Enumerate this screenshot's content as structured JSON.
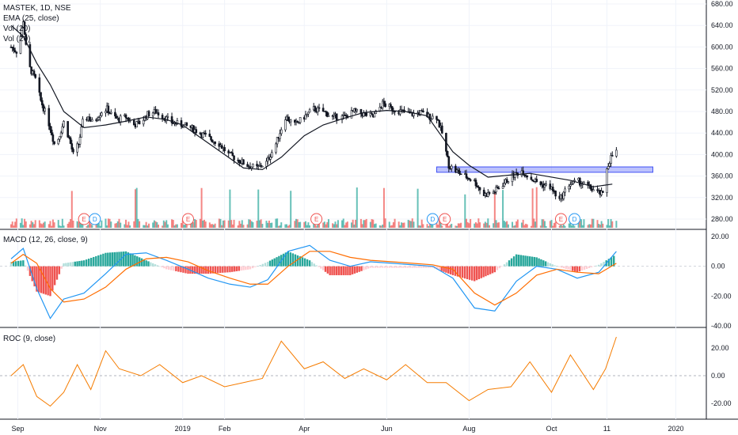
{
  "header": {
    "symbol": "MASTEK, 1D, NSE",
    "ema": "EMA (25, close)",
    "vol1": "Vol (20)",
    "vol2": "Vol (20)"
  },
  "macd_label": "MACD (12, 26, close, 9)",
  "roc_label": "ROC (9, close)",
  "x_labels": [
    "Sep",
    "Nov",
    "2019",
    "Feb",
    "Apr",
    "Jun",
    "Aug",
    "Oct",
    "11",
    "2020"
  ],
  "price_ticks": [
    "680.00",
    "640.00",
    "600.00",
    "560.00",
    "520.00",
    "480.00",
    "440.00",
    "400.00",
    "360.00",
    "320.00",
    "280.00"
  ],
  "macd_ticks": [
    "20.00",
    "0.00",
    "-20.00",
    "-40.00"
  ],
  "roc_ticks": [
    "20.00",
    "0.00",
    "-20.00"
  ],
  "events": [
    "E",
    "D",
    "E",
    "E",
    "D",
    "E",
    "E",
    "D"
  ],
  "colors": {
    "candle": "#131722",
    "ema": "#131722",
    "macd_line": "#2196f3",
    "signal_line": "#ff6d00",
    "hist_pos_strong": "#26a69a",
    "hist_pos_weak": "#b2dfdb",
    "hist_neg_strong": "#ef5350",
    "hist_neg_weak": "#ffcdd2",
    "roc": "#f57c00",
    "zone": "#3f51f5",
    "vol_up": "#26a69a",
    "vol_down": "#ef5350"
  },
  "chart_data": [
    {
      "type": "line",
      "title": "MASTEK, 1D, NSE",
      "subtype": "candlestick",
      "ylim": [
        270,
        690
      ],
      "x_ticks": [
        "Sep",
        "Nov",
        "2019",
        "Feb",
        "Apr",
        "Jun",
        "Aug",
        "Oct",
        "11",
        "2020"
      ],
      "series": [
        {
          "name": "EMA (25, close)",
          "x": [
            "2018-08-27",
            "2018-09-05",
            "2018-09-15",
            "2018-09-25",
            "2018-10-05",
            "2018-10-20",
            "2018-11-05",
            "2018-11-20",
            "2018-12-05",
            "2018-12-20",
            "2019-01-01",
            "2019-01-15",
            "2019-02-01",
            "2019-02-15",
            "2019-03-01",
            "2019-03-15",
            "2019-04-01",
            "2019-04-15",
            "2019-05-01",
            "2019-05-15",
            "2019-06-01",
            "2019-06-15",
            "2019-07-01",
            "2019-07-10",
            "2019-07-20",
            "2019-08-01",
            "2019-08-15",
            "2019-09-01",
            "2019-09-15",
            "2019-10-01",
            "2019-10-15",
            "2019-11-01",
            "2019-11-15"
          ],
          "values": [
            640,
            620,
            570,
            530,
            480,
            450,
            455,
            462,
            470,
            465,
            455,
            430,
            400,
            375,
            372,
            395,
            435,
            455,
            468,
            478,
            482,
            480,
            472,
            440,
            405,
            380,
            358,
            362,
            365,
            358,
            352,
            340,
            345
          ]
        },
        {
          "name": "Support zone",
          "x": [
            "2019-07-08",
            "2019-12-15"
          ],
          "values": [
            372,
            372
          ]
        }
      ],
      "candles_close": [
        [
          "2018-08-27",
          600
        ],
        [
          "2018-09-01",
          590
        ],
        [
          "2018-09-03",
          620
        ],
        [
          "2018-09-05",
          650
        ],
        [
          "2018-09-07",
          600
        ],
        [
          "2018-09-10",
          560
        ],
        [
          "2018-09-14",
          540
        ],
        [
          "2018-09-18",
          500
        ],
        [
          "2018-09-21",
          480
        ],
        [
          "2018-09-25",
          450
        ],
        [
          "2018-09-28",
          420
        ],
        [
          "2018-10-01",
          430
        ],
        [
          "2018-10-05",
          460
        ],
        [
          "2018-10-09",
          430
        ],
        [
          "2018-10-12",
          400
        ],
        [
          "2018-10-16",
          420
        ],
        [
          "2018-10-19",
          460
        ],
        [
          "2018-10-23",
          470
        ],
        [
          "2018-10-26",
          460
        ],
        [
          "2018-10-30",
          470
        ],
        [
          "2018-11-02",
          480
        ],
        [
          "2018-11-06",
          485
        ],
        [
          "2018-11-09",
          475
        ],
        [
          "2018-11-14",
          465
        ],
        [
          "2018-11-20",
          470
        ],
        [
          "2018-11-26",
          455
        ],
        [
          "2018-12-01",
          460
        ],
        [
          "2018-12-06",
          475
        ],
        [
          "2018-12-12",
          480
        ],
        [
          "2018-12-18",
          470
        ],
        [
          "2018-12-24",
          460
        ],
        [
          "2019-01-01",
          455
        ],
        [
          "2019-01-07",
          450
        ],
        [
          "2019-01-14",
          440
        ],
        [
          "2019-01-21",
          430
        ],
        [
          "2019-01-28",
          420
        ],
        [
          "2019-02-04",
          400
        ],
        [
          "2019-02-11",
          390
        ],
        [
          "2019-02-18",
          380
        ],
        [
          "2019-02-25",
          375
        ],
        [
          "2019-03-04",
          385
        ],
        [
          "2019-03-11",
          420
        ],
        [
          "2019-03-18",
          470
        ],
        [
          "2019-03-25",
          455
        ],
        [
          "2019-04-01",
          470
        ],
        [
          "2019-04-08",
          485
        ],
        [
          "2019-04-15",
          480
        ],
        [
          "2019-04-22",
          470
        ],
        [
          "2019-05-01",
          470
        ],
        [
          "2019-05-08",
          480
        ],
        [
          "2019-05-15",
          475
        ],
        [
          "2019-05-22",
          470
        ],
        [
          "2019-05-29",
          495
        ],
        [
          "2019-06-05",
          485
        ],
        [
          "2019-06-12",
          480
        ],
        [
          "2019-06-19",
          475
        ],
        [
          "2019-06-26",
          478
        ],
        [
          "2019-07-03",
          470
        ],
        [
          "2019-07-08",
          470
        ],
        [
          "2019-07-12",
          440
        ],
        [
          "2019-07-17",
          380
        ],
        [
          "2019-07-22",
          370
        ],
        [
          "2019-07-29",
          360
        ],
        [
          "2019-08-05",
          350
        ],
        [
          "2019-08-12",
          325
        ],
        [
          "2019-08-19",
          330
        ],
        [
          "2019-08-26",
          345
        ],
        [
          "2019-09-02",
          360
        ],
        [
          "2019-09-09",
          370
        ],
        [
          "2019-09-16",
          355
        ],
        [
          "2019-09-23",
          345
        ],
        [
          "2019-09-30",
          340
        ],
        [
          "2019-10-07",
          315
        ],
        [
          "2019-10-14",
          345
        ],
        [
          "2019-10-21",
          350
        ],
        [
          "2019-10-28",
          340
        ],
        [
          "2019-11-04",
          330
        ],
        [
          "2019-11-08",
          325
        ],
        [
          "2019-11-11",
          375
        ],
        [
          "2019-11-14",
          395
        ],
        [
          "2019-11-18",
          405
        ]
      ]
    },
    {
      "type": "bar",
      "title": "MACD (12, 26, close, 9)",
      "ylim": [
        -40,
        22
      ],
      "series": [
        {
          "name": "MACD",
          "x": [
            "2018-08-27",
            "2018-09-05",
            "2018-09-15",
            "2018-09-25",
            "2018-10-05",
            "2018-10-20",
            "2018-11-05",
            "2018-11-20",
            "2018-12-05",
            "2018-12-20",
            "2019-01-05",
            "2019-01-20",
            "2019-02-05",
            "2019-02-20",
            "2019-03-05",
            "2019-03-20",
            "2019-04-05",
            "2019-04-20",
            "2019-05-05",
            "2019-05-20",
            "2019-06-05",
            "2019-06-20",
            "2019-07-05",
            "2019-07-20",
            "2019-08-05",
            "2019-08-20",
            "2019-09-05",
            "2019-09-20",
            "2019-10-05",
            "2019-10-20",
            "2019-11-05",
            "2019-11-18"
          ],
          "values": [
            5,
            12,
            -15,
            -35,
            -22,
            -18,
            -5,
            8,
            9,
            4,
            -2,
            -8,
            -12,
            -14,
            -9,
            10,
            14,
            4,
            0,
            3,
            2,
            1,
            0,
            -8,
            -28,
            -30,
            -10,
            0,
            -2,
            -8,
            -4,
            10
          ]
        },
        {
          "name": "Signal",
          "x": [
            "2018-08-27",
            "2018-09-05",
            "2018-09-15",
            "2018-09-25",
            "2018-10-05",
            "2018-10-20",
            "2018-11-05",
            "2018-11-20",
            "2018-12-05",
            "2018-12-20",
            "2019-01-05",
            "2019-01-20",
            "2019-02-05",
            "2019-02-20",
            "2019-03-05",
            "2019-03-20",
            "2019-04-05",
            "2019-04-20",
            "2019-05-05",
            "2019-05-20",
            "2019-06-05",
            "2019-06-20",
            "2019-07-05",
            "2019-07-20",
            "2019-08-05",
            "2019-08-20",
            "2019-09-05",
            "2019-09-20",
            "2019-10-05",
            "2019-10-20",
            "2019-11-05",
            "2019-11-18"
          ],
          "values": [
            2,
            8,
            2,
            -15,
            -24,
            -22,
            -14,
            -2,
            5,
            6,
            3,
            -3,
            -8,
            -12,
            -12,
            0,
            10,
            10,
            6,
            4,
            3,
            2,
            1,
            -2,
            -18,
            -26,
            -18,
            -6,
            -2,
            -4,
            -5,
            2
          ]
        }
      ]
    },
    {
      "type": "line",
      "title": "ROC (9, close)",
      "ylim": [
        -25,
        30
      ],
      "series": [
        {
          "name": "ROC",
          "x": [
            "2018-08-27",
            "2018-09-05",
            "2018-09-15",
            "2018-09-25",
            "2018-10-05",
            "2018-10-15",
            "2018-10-25",
            "2018-11-05",
            "2018-11-15",
            "2018-12-01",
            "2018-12-15",
            "2019-01-01",
            "2019-01-15",
            "2019-02-01",
            "2019-02-15",
            "2019-03-01",
            "2019-03-15",
            "2019-04-01",
            "2019-04-15",
            "2019-05-01",
            "2019-05-15",
            "2019-06-01",
            "2019-06-15",
            "2019-07-01",
            "2019-07-15",
            "2019-08-01",
            "2019-08-15",
            "2019-09-01",
            "2019-09-15",
            "2019-10-01",
            "2019-10-15",
            "2019-11-01",
            "2019-11-10",
            "2019-11-18"
          ],
          "values": [
            0,
            8,
            -15,
            -22,
            -12,
            8,
            -10,
            18,
            5,
            0,
            8,
            -5,
            0,
            -8,
            -5,
            -2,
            25,
            5,
            10,
            -2,
            5,
            -3,
            8,
            -5,
            -5,
            -18,
            -10,
            -8,
            10,
            -12,
            15,
            -10,
            5,
            28
          ]
        }
      ]
    }
  ]
}
